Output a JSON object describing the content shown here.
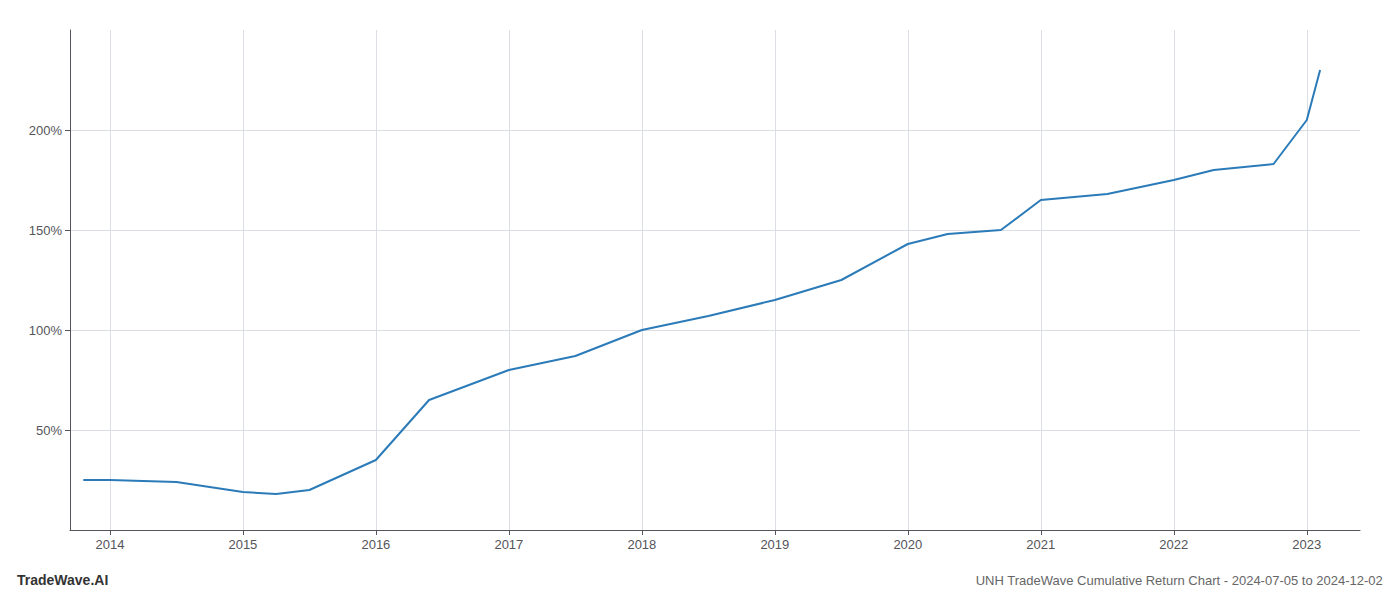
{
  "chart_data": {
    "type": "line",
    "title": "UNH TradeWave Cumulative Return Chart - 2024-07-05 to 2024-12-02",
    "annotations": [
      "TradeWave.AI"
    ],
    "x": [
      2013.8,
      2014.0,
      2014.5,
      2015.0,
      2015.25,
      2015.5,
      2016.0,
      2016.4,
      2017.0,
      2017.5,
      2018.0,
      2018.5,
      2019.0,
      2019.5,
      2020.0,
      2020.3,
      2020.7,
      2021.0,
      2021.5,
      2022.0,
      2022.3,
      2022.75,
      2023.0,
      2023.1
    ],
    "values": [
      25,
      25,
      24,
      19,
      18,
      20,
      35,
      65,
      80,
      87,
      100,
      107,
      115,
      125,
      143,
      148,
      150,
      165,
      168,
      175,
      180,
      183,
      205,
      230
    ],
    "color": "#2b7bb9",
    "xlim": [
      2013.7,
      2023.4
    ],
    "xticks": [
      2014,
      2015,
      2016,
      2017,
      2018,
      2019,
      2020,
      2021,
      2022,
      2023
    ],
    "ylim": [
      0,
      250
    ],
    "yticks": [
      {
        "value": 50,
        "label": "50%"
      },
      {
        "value": 100,
        "label": "100%"
      },
      {
        "value": 150,
        "label": "150%"
      },
      {
        "value": 200,
        "label": "200%"
      }
    ],
    "grid": true
  }
}
